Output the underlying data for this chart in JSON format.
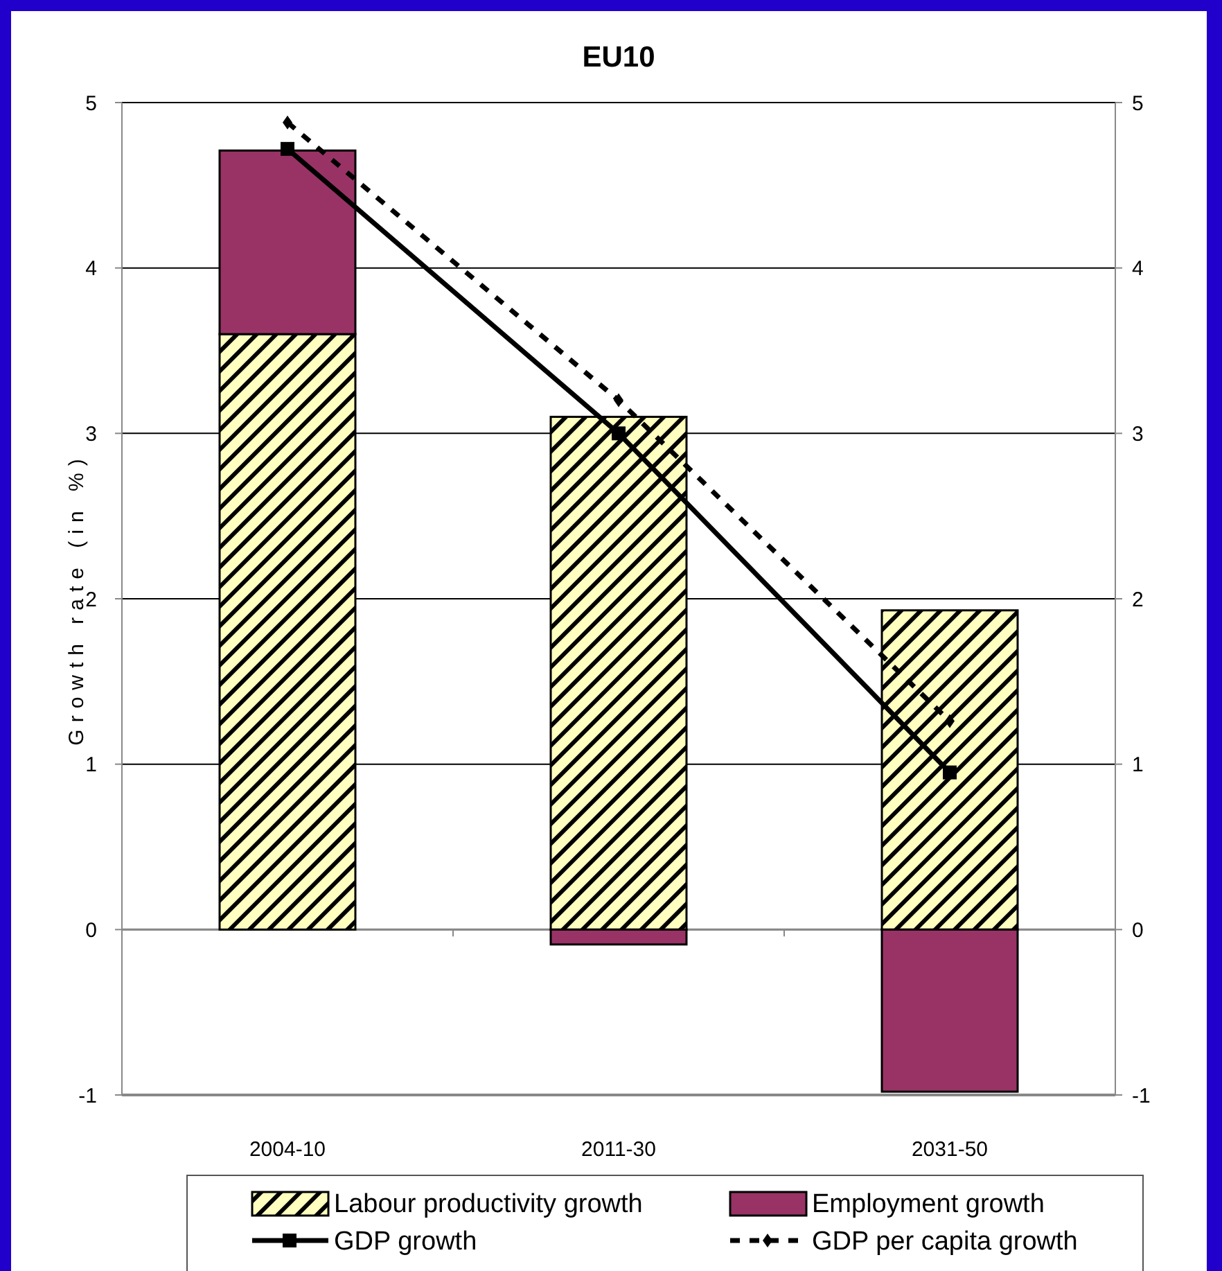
{
  "chart_data": {
    "type": "bar",
    "title": "EU10",
    "ylabel": "Growth rate (in %)",
    "categories": [
      "2004-10",
      "2011-30",
      "2031-50"
    ],
    "stacked": true,
    "ylim": [
      -1,
      5
    ],
    "yticks": [
      -1,
      0,
      1,
      2,
      3,
      4,
      5
    ],
    "y2lim": [
      -1,
      5
    ],
    "y2ticks": [
      -1,
      0,
      1,
      2,
      3,
      4,
      5
    ],
    "grid": "y",
    "legend": "bottom",
    "series": [
      {
        "name": "Labour productivity growth",
        "color": "#ffffc0",
        "values": [
          3.6,
          3.1,
          1.93
        ]
      },
      {
        "name": "Employment growth",
        "color": "#993366",
        "values": [
          1.11,
          -0.09,
          -0.98
        ]
      },
      {
        "name": "GDP growth",
        "type": "line",
        "color": "#000000",
        "marker": "square",
        "line_style": "solid",
        "values": [
          4.72,
          3.0,
          0.95
        ]
      },
      {
        "name": "GDP per capita growth",
        "type": "line",
        "color": "#000000",
        "marker": "diamond",
        "line_style": "dashed",
        "values": [
          4.88,
          3.2,
          1.26
        ]
      }
    ]
  }
}
